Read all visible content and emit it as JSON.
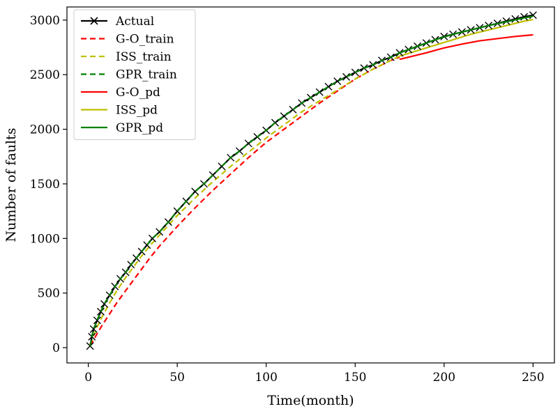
{
  "chart_data": {
    "type": "line",
    "title": "",
    "xlabel": "Time(month)",
    "ylabel": "Number of faults",
    "xlim": [
      -12,
      262
    ],
    "ylim": [
      -140,
      3120
    ],
    "x_ticks": [
      0,
      50,
      100,
      150,
      200,
      250
    ],
    "y_ticks": [
      0,
      500,
      1000,
      1500,
      2000,
      2500,
      3000
    ],
    "grid": false,
    "legend_position": "top-left",
    "train_end": 175,
    "colors": {
      "actual": "#000000",
      "go": "#ff0000",
      "iss": "#bfbf00",
      "gpr": "#007f00"
    },
    "series": [
      {
        "name": "Actual",
        "style": "solid-x",
        "color": "#000000",
        "points": [
          [
            1,
            15
          ],
          [
            2,
            100
          ],
          [
            3,
            170
          ],
          [
            5,
            250
          ],
          [
            7,
            330
          ],
          [
            9,
            400
          ],
          [
            12,
            480
          ],
          [
            15,
            560
          ],
          [
            18,
            630
          ],
          [
            21,
            690
          ],
          [
            24,
            760
          ],
          [
            27,
            820
          ],
          [
            30,
            880
          ],
          [
            33,
            940
          ],
          [
            36,
            1000
          ],
          [
            40,
            1060
          ],
          [
            45,
            1150
          ],
          [
            50,
            1250
          ],
          [
            55,
            1340
          ],
          [
            60,
            1430
          ],
          [
            65,
            1500
          ],
          [
            70,
            1580
          ],
          [
            75,
            1660
          ],
          [
            80,
            1740
          ],
          [
            85,
            1800
          ],
          [
            90,
            1870
          ],
          [
            95,
            1930
          ],
          [
            100,
            1990
          ],
          [
            105,
            2060
          ],
          [
            110,
            2120
          ],
          [
            115,
            2180
          ],
          [
            120,
            2240
          ],
          [
            125,
            2290
          ],
          [
            130,
            2340
          ],
          [
            135,
            2390
          ],
          [
            140,
            2440
          ],
          [
            145,
            2480
          ],
          [
            150,
            2520
          ],
          [
            155,
            2560
          ],
          [
            160,
            2590
          ],
          [
            165,
            2630
          ],
          [
            170,
            2660
          ],
          [
            175,
            2700
          ],
          [
            180,
            2730
          ],
          [
            185,
            2760
          ],
          [
            190,
            2790
          ],
          [
            195,
            2820
          ],
          [
            200,
            2850
          ],
          [
            205,
            2870
          ],
          [
            210,
            2890
          ],
          [
            215,
            2910
          ],
          [
            220,
            2930
          ],
          [
            225,
            2950
          ],
          [
            230,
            2970
          ],
          [
            235,
            2990
          ],
          [
            240,
            3010
          ],
          [
            245,
            3030
          ],
          [
            250,
            3045
          ]
        ]
      },
      {
        "name": "G-O_train",
        "style": "dashed",
        "color": "#ff0000",
        "points": [
          [
            1,
            20
          ],
          [
            3,
            70
          ],
          [
            5,
            130
          ],
          [
            8,
            210
          ],
          [
            12,
            310
          ],
          [
            16,
            410
          ],
          [
            20,
            500
          ],
          [
            25,
            610
          ],
          [
            30,
            720
          ],
          [
            35,
            830
          ],
          [
            40,
            930
          ],
          [
            50,
            1110
          ],
          [
            60,
            1280
          ],
          [
            70,
            1440
          ],
          [
            80,
            1590
          ],
          [
            90,
            1740
          ],
          [
            100,
            1880
          ],
          [
            110,
            2000
          ],
          [
            120,
            2120
          ],
          [
            130,
            2240
          ],
          [
            140,
            2350
          ],
          [
            150,
            2460
          ],
          [
            160,
            2550
          ],
          [
            170,
            2630
          ],
          [
            175,
            2660
          ]
        ]
      },
      {
        "name": "ISS_train",
        "style": "dashed",
        "color": "#bfbf00",
        "points": [
          [
            1,
            30
          ],
          [
            3,
            110
          ],
          [
            5,
            190
          ],
          [
            8,
            290
          ],
          [
            12,
            410
          ],
          [
            16,
            520
          ],
          [
            20,
            620
          ],
          [
            25,
            730
          ],
          [
            30,
            840
          ],
          [
            35,
            940
          ],
          [
            40,
            1030
          ],
          [
            50,
            1210
          ],
          [
            60,
            1370
          ],
          [
            70,
            1520
          ],
          [
            80,
            1660
          ],
          [
            90,
            1790
          ],
          [
            100,
            1920
          ],
          [
            110,
            2040
          ],
          [
            120,
            2160
          ],
          [
            130,
            2260
          ],
          [
            140,
            2360
          ],
          [
            150,
            2460
          ],
          [
            160,
            2550
          ],
          [
            170,
            2630
          ],
          [
            175,
            2670
          ]
        ]
      },
      {
        "name": "GPR_train",
        "style": "dashed",
        "color": "#007f00",
        "points": [
          [
            1,
            15
          ],
          [
            2,
            100
          ],
          [
            3,
            170
          ],
          [
            5,
            250
          ],
          [
            7,
            330
          ],
          [
            9,
            400
          ],
          [
            12,
            480
          ],
          [
            15,
            560
          ],
          [
            18,
            630
          ],
          [
            21,
            690
          ],
          [
            24,
            760
          ],
          [
            27,
            820
          ],
          [
            30,
            880
          ],
          [
            33,
            940
          ],
          [
            36,
            1000
          ],
          [
            40,
            1060
          ],
          [
            45,
            1150
          ],
          [
            50,
            1250
          ],
          [
            55,
            1340
          ],
          [
            60,
            1430
          ],
          [
            65,
            1500
          ],
          [
            70,
            1580
          ],
          [
            75,
            1660
          ],
          [
            80,
            1740
          ],
          [
            85,
            1800
          ],
          [
            90,
            1870
          ],
          [
            95,
            1930
          ],
          [
            100,
            1990
          ],
          [
            105,
            2060
          ],
          [
            110,
            2120
          ],
          [
            115,
            2180
          ],
          [
            120,
            2240
          ],
          [
            125,
            2290
          ],
          [
            130,
            2340
          ],
          [
            135,
            2390
          ],
          [
            140,
            2440
          ],
          [
            145,
            2480
          ],
          [
            150,
            2520
          ],
          [
            155,
            2560
          ],
          [
            160,
            2590
          ],
          [
            165,
            2630
          ],
          [
            170,
            2660
          ],
          [
            175,
            2700
          ]
        ]
      },
      {
        "name": "G-O_pd",
        "style": "solid",
        "color": "#ff0000",
        "points": [
          [
            175,
            2640
          ],
          [
            190,
            2700
          ],
          [
            200,
            2745
          ],
          [
            210,
            2780
          ],
          [
            220,
            2810
          ],
          [
            230,
            2830
          ],
          [
            240,
            2850
          ],
          [
            250,
            2865
          ]
        ]
      },
      {
        "name": "ISS_pd",
        "style": "solid",
        "color": "#bfbf00",
        "points": [
          [
            175,
            2670
          ],
          [
            185,
            2720
          ],
          [
            195,
            2770
          ],
          [
            205,
            2820
          ],
          [
            215,
            2870
          ],
          [
            225,
            2910
          ],
          [
            235,
            2950
          ],
          [
            245,
            2990
          ],
          [
            250,
            3005
          ]
        ]
      },
      {
        "name": "GPR_pd",
        "style": "solid",
        "color": "#007f00",
        "points": [
          [
            175,
            2700
          ],
          [
            185,
            2760
          ],
          [
            195,
            2820
          ],
          [
            205,
            2870
          ],
          [
            215,
            2910
          ],
          [
            225,
            2950
          ],
          [
            235,
            2985
          ],
          [
            245,
            3020
          ],
          [
            250,
            3035
          ]
        ]
      }
    ]
  }
}
